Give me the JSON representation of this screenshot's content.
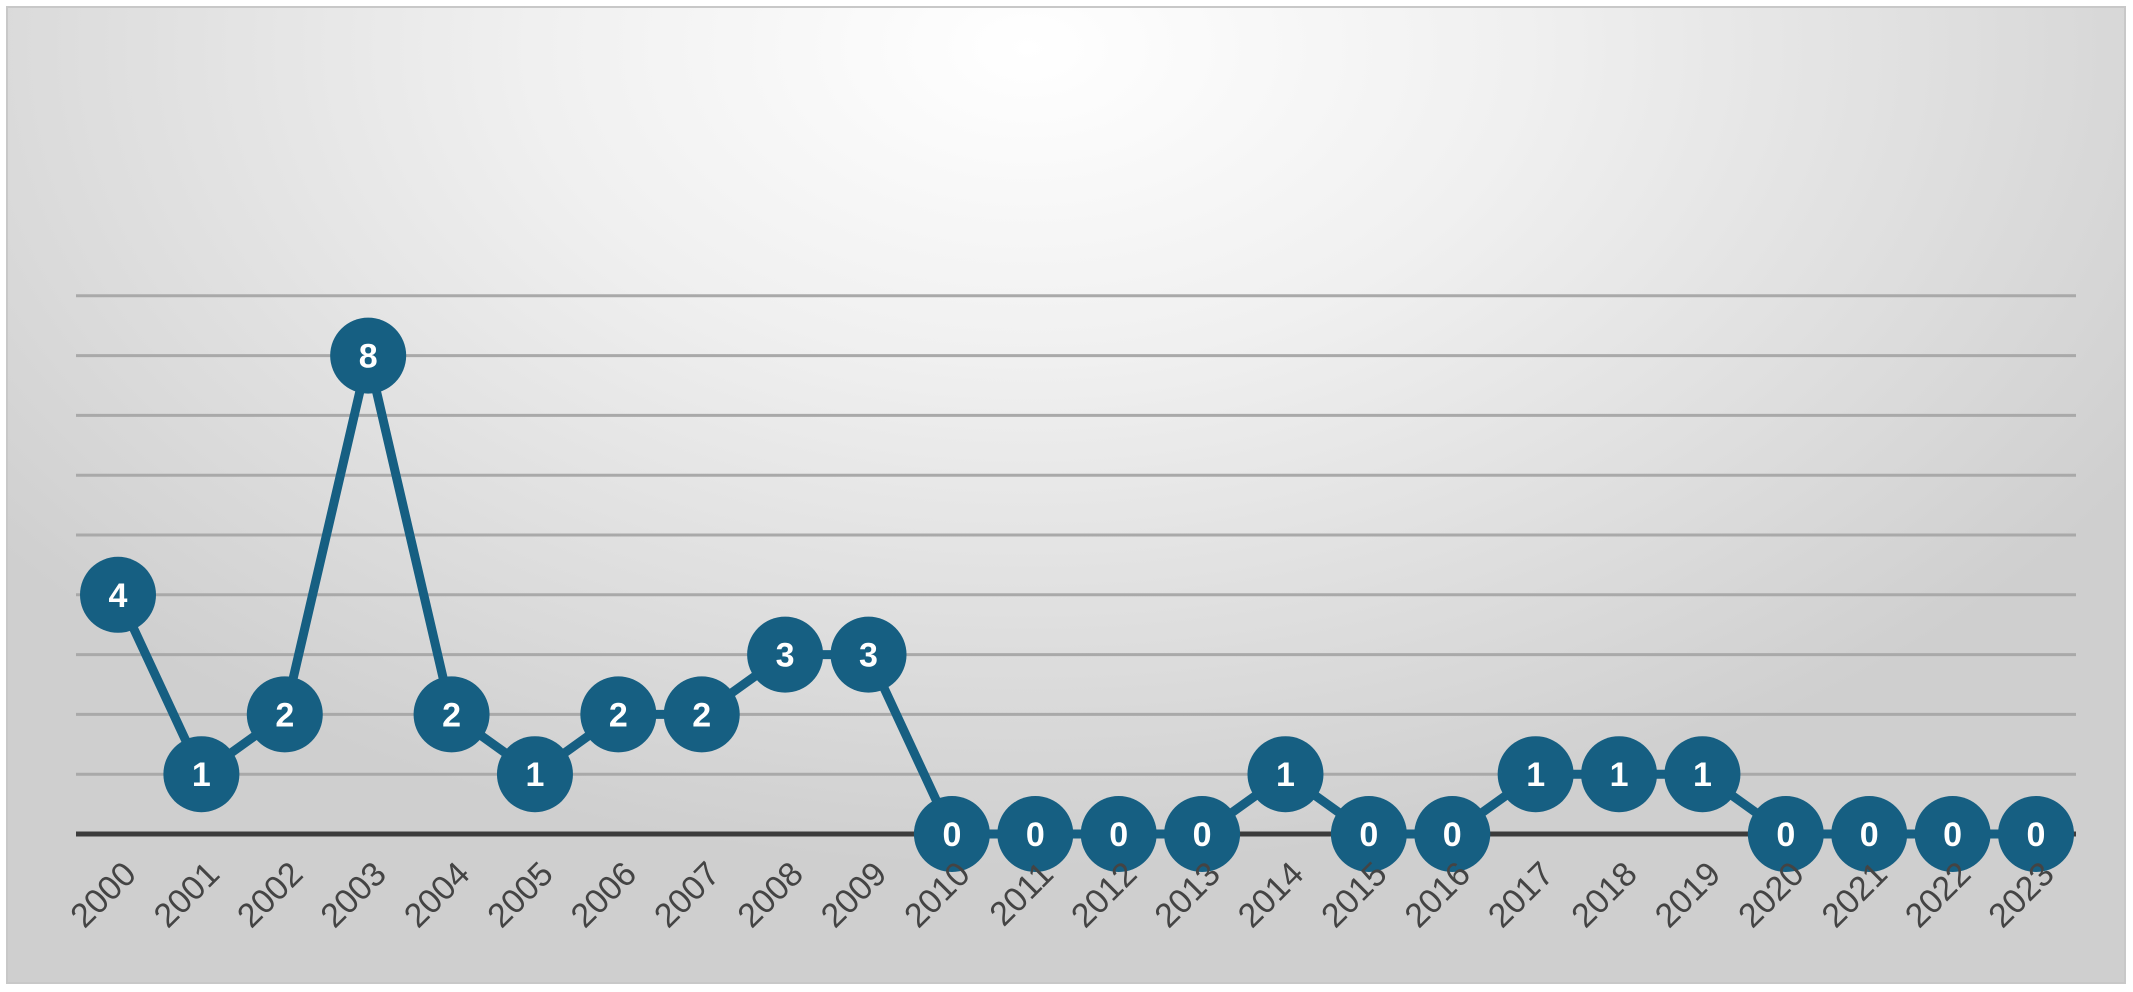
{
  "chart_data": {
    "type": "line",
    "title": "",
    "xlabel": "",
    "ylabel": "",
    "x": [
      "2000",
      "2001",
      "2002",
      "2003",
      "2004",
      "2005",
      "2006",
      "2007",
      "2008",
      "2009",
      "2010",
      "2011",
      "2012",
      "2013",
      "2014",
      "2015",
      "2016",
      "2017",
      "2018",
      "2019",
      "2020",
      "2021",
      "2022",
      "2023"
    ],
    "series": [
      {
        "values": [
          4,
          1,
          2,
          8,
          2,
          1,
          2,
          2,
          3,
          3,
          0,
          0,
          0,
          0,
          1,
          0,
          0,
          1,
          1,
          1,
          0,
          0,
          0,
          0
        ],
        "color": "#165f82"
      }
    ],
    "ylim": [
      0,
      9
    ],
    "grid": true,
    "legend": "none",
    "data_labels": true
  }
}
